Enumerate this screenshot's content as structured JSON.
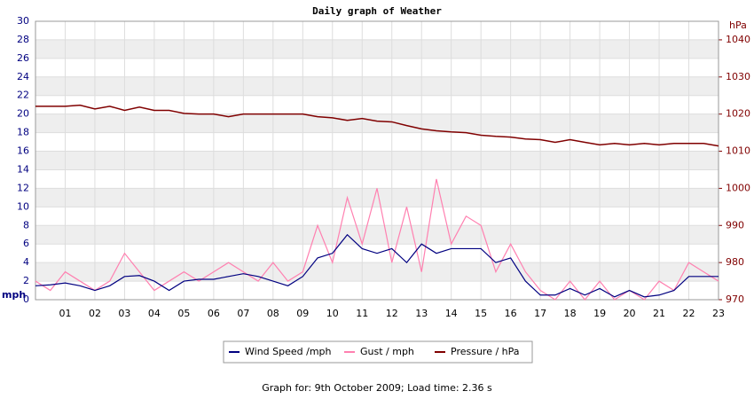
{
  "chart_data": {
    "type": "line",
    "title": "Daily graph of Weather",
    "ylabel": "mph",
    "y2label": "hPa",
    "footer": "Graph for: 9th October 2009; Load time: 2.36 s",
    "x": [
      0,
      0.5,
      1,
      1.5,
      2,
      2.5,
      3,
      3.5,
      4,
      4.5,
      5,
      5.5,
      6,
      6.5,
      7,
      7.5,
      8,
      8.5,
      9,
      9.5,
      10,
      10.5,
      11,
      11.5,
      12,
      12.5,
      13,
      13.5,
      14,
      14.5,
      15,
      15.5,
      16,
      16.5,
      17,
      17.5,
      18,
      18.5,
      19,
      19.5,
      20,
      20.5,
      21,
      21.5,
      22,
      22.5,
      23
    ],
    "xlim": [
      0,
      23
    ],
    "xticks": [
      {
        "value": 1,
        "label": "01"
      },
      {
        "value": 2,
        "label": "02"
      },
      {
        "value": 3,
        "label": "03"
      },
      {
        "value": 4,
        "label": "04"
      },
      {
        "value": 5,
        "label": "05"
      },
      {
        "value": 6,
        "label": "06"
      },
      {
        "value": 7,
        "label": "07"
      },
      {
        "value": 8,
        "label": "08"
      },
      {
        "value": 9,
        "label": "09"
      },
      {
        "value": 10,
        "label": "10"
      },
      {
        "value": 11,
        "label": "11"
      },
      {
        "value": 12,
        "label": "12"
      },
      {
        "value": 13,
        "label": "13"
      },
      {
        "value": 14,
        "label": "14"
      },
      {
        "value": 15,
        "label": "15"
      },
      {
        "value": 16,
        "label": "16"
      },
      {
        "value": 17,
        "label": "17"
      },
      {
        "value": 18,
        "label": "18"
      },
      {
        "value": 19,
        "label": "19"
      },
      {
        "value": 20,
        "label": "20"
      },
      {
        "value": 21,
        "label": "21"
      },
      {
        "value": 22,
        "label": "22"
      },
      {
        "value": 23,
        "label": "23"
      }
    ],
    "ylim": [
      0,
      30
    ],
    "yticks": [
      0,
      2,
      4,
      6,
      8,
      10,
      12,
      14,
      16,
      18,
      20,
      22,
      24,
      26,
      28,
      30
    ],
    "y2lim": [
      970,
      1045
    ],
    "y2ticks": [
      970,
      980,
      990,
      1000,
      1010,
      1020,
      1030,
      1040
    ],
    "grid": true,
    "series": [
      {
        "name": "Gust / mph",
        "color": "#ff80b0",
        "values": [
          2,
          1,
          3,
          2,
          1,
          2,
          5,
          3,
          1,
          2,
          3,
          2,
          3,
          4,
          3,
          2,
          4,
          2,
          3,
          8,
          4,
          11,
          6,
          12,
          4,
          10,
          3,
          13,
          6,
          9,
          8,
          3,
          6,
          3,
          1,
          0,
          2,
          0,
          2,
          0,
          1,
          0,
          2,
          1,
          4,
          3,
          2
        ]
      },
      {
        "name": "Wind Speed /mph",
        "color": "#000080",
        "values": [
          1.5,
          1.6,
          1.8,
          1.5,
          1.0,
          1.5,
          2.5,
          2.6,
          2.0,
          1.0,
          2.0,
          2.2,
          2.2,
          2.5,
          2.8,
          2.5,
          2.0,
          1.5,
          2.5,
          4.5,
          5.0,
          7.0,
          5.5,
          5.0,
          5.5,
          4.0,
          6.0,
          5.0,
          5.5,
          5.5,
          5.5,
          4.0,
          4.5,
          2.0,
          0.5,
          0.5,
          1.2,
          0.5,
          1.2,
          0.3,
          1.0,
          0.3,
          0.5,
          1.0,
          2.5,
          2.5,
          2.5
        ]
      },
      {
        "name": "Pressure / hPa",
        "color": "#800000",
        "axis": "y2",
        "values": [
          1022.1,
          1022.1,
          1022.1,
          1022.4,
          1021.4,
          1022.1,
          1021.0,
          1021.9,
          1021.0,
          1021.0,
          1020.2,
          1020.0,
          1020.0,
          1019.3,
          1020.0,
          1020.0,
          1020.0,
          1020.0,
          1020.0,
          1019.3,
          1019.0,
          1018.3,
          1018.8,
          1018.1,
          1017.9,
          1016.9,
          1016.0,
          1015.5,
          1015.2,
          1015.0,
          1014.3,
          1014.0,
          1013.8,
          1013.3,
          1013.1,
          1012.4,
          1013.1,
          1012.4,
          1011.7,
          1012.1,
          1011.7,
          1012.1,
          1011.7,
          1012.1,
          1012.1,
          1012.1,
          1011.4
        ]
      }
    ],
    "legend_order": [
      1,
      0,
      2
    ]
  }
}
